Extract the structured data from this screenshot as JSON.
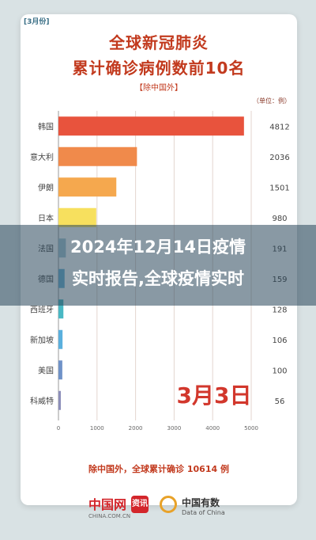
{
  "corner_tag": "[3月份]",
  "title_line1": "全球新冠肺炎",
  "title_line2": "累计确诊病例数前10名",
  "subtitle": "【除中国外】",
  "unit": "（单位：例）",
  "date_label": "3月3日",
  "footer": "除中国外，全球累计确诊 10614 例",
  "overlay": {
    "line1": "2024年12月14日疫情",
    "line2": "实时报告,全球疫情实时"
  },
  "logos": {
    "china_net": "中国网",
    "china_net_sub": "CHINA.COM.CN",
    "badge": "资讯",
    "china_data": "中国有数",
    "china_data_sub": "Data of China"
  },
  "chart_data": {
    "type": "bar",
    "orientation": "horizontal",
    "categories": [
      "韩国",
      "意大利",
      "伊朗",
      "日本",
      "法国",
      "德国",
      "西班牙",
      "新加坡",
      "美国",
      "科威特"
    ],
    "values": [
      4812,
      2036,
      1501,
      980,
      191,
      159,
      128,
      106,
      100,
      56
    ],
    "value_labels": [
      "4812",
      "2036",
      "1501",
      "980",
      "191",
      "159",
      "128",
      "106",
      "100",
      "56"
    ],
    "colors": [
      "#e8533d",
      "#f08a4b",
      "#f5a84e",
      "#f7e05e",
      "#a9c9d8",
      "#6fb7d8",
      "#49b8c4",
      "#5ab0de",
      "#6f92c8",
      "#8d8fba"
    ],
    "xlim": [
      0,
      5000
    ],
    "xticks": [
      0,
      1000,
      2000,
      3000,
      4000,
      5000
    ],
    "grid": true
  }
}
